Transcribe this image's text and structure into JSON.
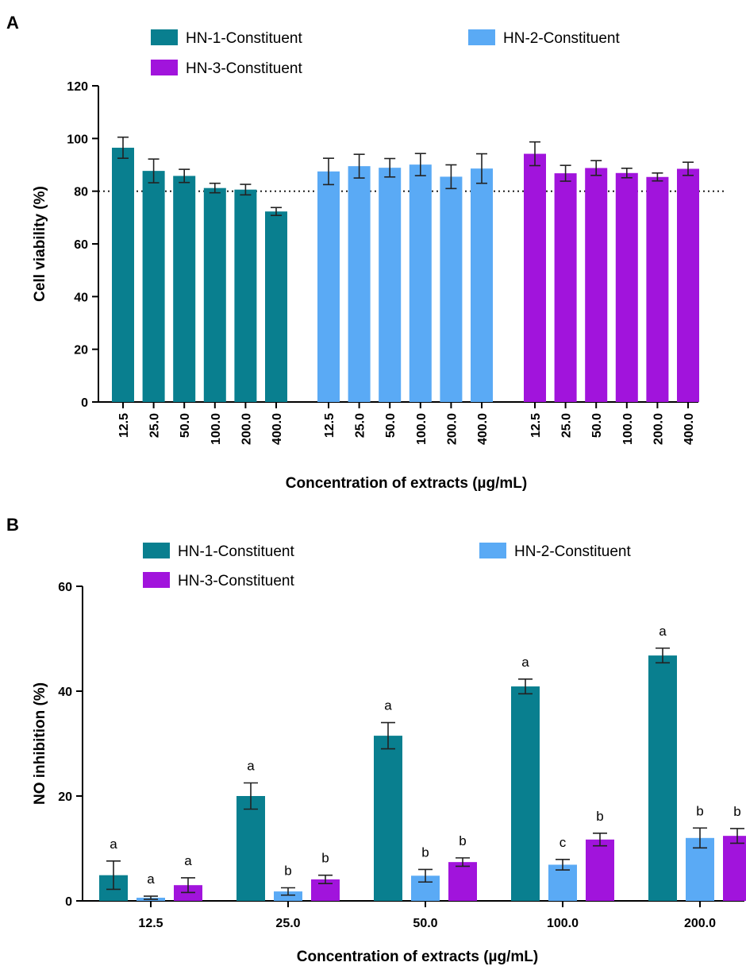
{
  "chart_data": [
    {
      "panel": "A",
      "type": "bar",
      "groups": [
        {
          "series": "HN-1-Constituent",
          "categories": [
            "12.5",
            "25.0",
            "50.0",
            "100.0",
            "200.0",
            "400.0"
          ],
          "values": [
            96.5,
            87.7,
            85.8,
            81.2,
            80.6,
            72.3
          ],
          "errors": [
            4.0,
            4.5,
            2.5,
            1.8,
            2.0,
            1.5
          ]
        },
        {
          "series": "HN-2-Constituent",
          "categories": [
            "12.5",
            "25.0",
            "50.0",
            "100.0",
            "200.0",
            "400.0"
          ],
          "values": [
            87.5,
            89.5,
            88.9,
            90.1,
            85.5,
            88.6
          ],
          "errors": [
            5.0,
            4.5,
            3.5,
            4.2,
            4.5,
            5.6
          ]
        },
        {
          "series": "HN-3-Constituent",
          "categories": [
            "12.5",
            "25.0",
            "50.0",
            "100.0",
            "200.0",
            "400.0"
          ],
          "values": [
            94.2,
            86.8,
            88.8,
            86.9,
            85.4,
            88.5
          ],
          "errors": [
            4.5,
            3.0,
            2.8,
            1.8,
            1.5,
            2.5
          ]
        }
      ],
      "xlabel": "Concentration of extracts (µg/mL)",
      "ylabel": "Cell viability (%)",
      "ylim": [
        0,
        120
      ],
      "yticks": [
        0,
        20,
        40,
        60,
        80,
        100,
        120
      ],
      "reference_line": 80,
      "legend": [
        "HN-1-Constituent",
        "HN-2-Constituent",
        "HN-3-Constituent"
      ],
      "legend_position": "top"
    },
    {
      "panel": "B",
      "type": "bar",
      "categories": [
        "12.5",
        "25.0",
        "50.0",
        "100.0",
        "200.0"
      ],
      "series": [
        {
          "name": "HN-1-Constituent",
          "values": [
            4.9,
            20.0,
            31.5,
            40.9,
            46.8
          ],
          "errors": [
            2.7,
            2.5,
            2.5,
            1.4,
            1.4
          ],
          "labels": [
            "a",
            "a",
            "a",
            "a",
            "a"
          ]
        },
        {
          "name": "HN-2-Constituent",
          "values": [
            0.6,
            1.8,
            4.8,
            6.9,
            12.0
          ],
          "errors": [
            0.3,
            0.7,
            1.2,
            1.0,
            1.9
          ],
          "labels": [
            "a",
            "b",
            "b",
            "c",
            "b"
          ]
        },
        {
          "name": "HN-3-Constituent",
          "values": [
            3.0,
            4.1,
            7.4,
            11.7,
            12.4
          ],
          "errors": [
            1.4,
            0.8,
            0.8,
            1.2,
            1.4
          ],
          "labels": [
            "a",
            "b",
            "b",
            "b",
            "b"
          ]
        }
      ],
      "xlabel": "Concentration of extracts (µg/mL)",
      "ylabel": "NO inhibition (%)",
      "ylim": [
        0,
        60
      ],
      "yticks": [
        0,
        20,
        40,
        60
      ],
      "legend": [
        "HN-1-Constituent",
        "HN-2-Constituent",
        "HN-3-Constituent"
      ],
      "legend_position": "top"
    }
  ],
  "colors": {
    "HN-1-Constituent": "#097f8f",
    "HN-2-Constituent": "#5aaaf5",
    "HN-3-Constituent": "#a114dc",
    "axis": "#000000"
  }
}
